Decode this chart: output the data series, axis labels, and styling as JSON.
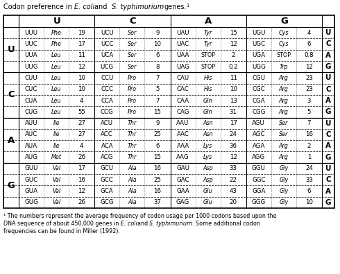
{
  "title_parts": [
    {
      "text": "Codon preference in ",
      "italic": false
    },
    {
      "text": "E. coli",
      "italic": true
    },
    {
      "text": "and  ",
      "italic": false
    },
    {
      "text": "S. typhimurium",
      "italic": true
    },
    {
      "text": "genes.",
      "italic": false
    },
    {
      "text": "1",
      "italic": false,
      "super": true
    }
  ],
  "footnote_parts": [
    [
      {
        "text": "¹ The numbers represent the average frequency of codon usage per 1000 codons based upon the",
        "italic": false
      }
    ],
    [
      {
        "text": "DNA sequence of about 450,000 genes in ",
        "italic": false
      },
      {
        "text": "E. coli",
        "italic": true
      },
      {
        "text": "and ",
        "italic": false
      },
      {
        "text": "S. typhimurium",
        "italic": true
      },
      {
        "text": ". Some additional codon",
        "italic": false
      }
    ],
    [
      {
        "text": "frequencies can be found in Miller (1992).",
        "italic": false
      }
    ]
  ],
  "second_pos": [
    "U",
    "C",
    "A",
    "G"
  ],
  "first_pos": [
    "U",
    "C",
    "A",
    "G"
  ],
  "third_pos_cycle": [
    "U",
    "C",
    "A",
    "G"
  ],
  "codons": [
    [
      "UUU",
      "Phe",
      "19",
      "UCU",
      "Ser",
      "9",
      "UAU",
      "Tyr",
      "15",
      "UGU",
      "Cys",
      "4"
    ],
    [
      "UUC",
      "Phe",
      "17",
      "UCC",
      "Ser",
      "10",
      "UAC",
      "Tyr",
      "12",
      "UGC",
      "Cys",
      "6"
    ],
    [
      "UUA",
      "Leu",
      "11",
      "UCA",
      "Ser",
      "6",
      "UAA",
      "STOP",
      "2",
      "UGA",
      "STOP",
      "0.8"
    ],
    [
      "UUG",
      "Leu",
      "12",
      "UCG",
      "Ser",
      "8",
      "UAG",
      "STOP",
      "0.2",
      "UGG",
      "Trp",
      "12"
    ],
    [
      "CUU",
      "Leu",
      "10",
      "CCU",
      "Pro",
      "7",
      "CAU",
      "His",
      "11",
      "CGU",
      "Arg",
      "23"
    ],
    [
      "CUC",
      "Leu",
      "10",
      "CCC",
      "Pro",
      "5",
      "CAC",
      "His",
      "10",
      "CGC",
      "Arg",
      "23"
    ],
    [
      "CUA",
      "Leu",
      "4",
      "CCA",
      "Pro",
      "7",
      "CAA",
      "Gln",
      "13",
      "CGA",
      "Arg",
      "3"
    ],
    [
      "CUG",
      "Leu",
      "55",
      "CCG",
      "Pro",
      "15",
      "CAG",
      "Gln",
      "31",
      "CGG",
      "Arg",
      "5"
    ],
    [
      "AUU",
      "Ile",
      "27",
      "ACU",
      "Thr",
      "9",
      "AAU",
      "Asn",
      "17",
      "AGU",
      "Ser",
      "7"
    ],
    [
      "AUC",
      "Ile",
      "27",
      "ACC",
      "Thr",
      "25",
      "AAC",
      "Asn",
      "24",
      "AGC",
      "Ser",
      "16"
    ],
    [
      "AUA",
      "Ile",
      "4",
      "ACA",
      "Thr",
      "6",
      "AAA",
      "Lys",
      "36",
      "AGA",
      "Arg",
      "2"
    ],
    [
      "AUG",
      "Met",
      "26",
      "ACG",
      "Thr",
      "15",
      "AAG",
      "Lys",
      "12",
      "AGG",
      "Arg",
      "1"
    ],
    [
      "GUU",
      "Val",
      "17",
      "GCU",
      "Ala",
      "16",
      "GAU",
      "Asp",
      "33",
      "GGU",
      "Gly",
      "24"
    ],
    [
      "GUC",
      "Val",
      "16",
      "GCC",
      "Ala",
      "25",
      "GAC",
      "Asp",
      "22",
      "GGC",
      "Gly",
      "33"
    ],
    [
      "GUA",
      "Val",
      "12",
      "GCA",
      "Ala",
      "16",
      "GAA",
      "Glu",
      "43",
      "GGA",
      "Gly",
      "6"
    ],
    [
      "GUG",
      "Val",
      "26",
      "GCG",
      "Ala",
      "37",
      "GAG",
      "Glu",
      "20",
      "GGG",
      "Gly",
      "10"
    ]
  ],
  "italic_aa": [
    "Phe",
    "Leu",
    "Ser",
    "Tyr",
    "Cys",
    "Trp",
    "Pro",
    "His",
    "Gln",
    "Arg",
    "Ile",
    "Met",
    "Thr",
    "Asn",
    "Lys",
    "Asp",
    "Glu",
    "Ala",
    "Gly",
    "Val",
    "Thr"
  ]
}
